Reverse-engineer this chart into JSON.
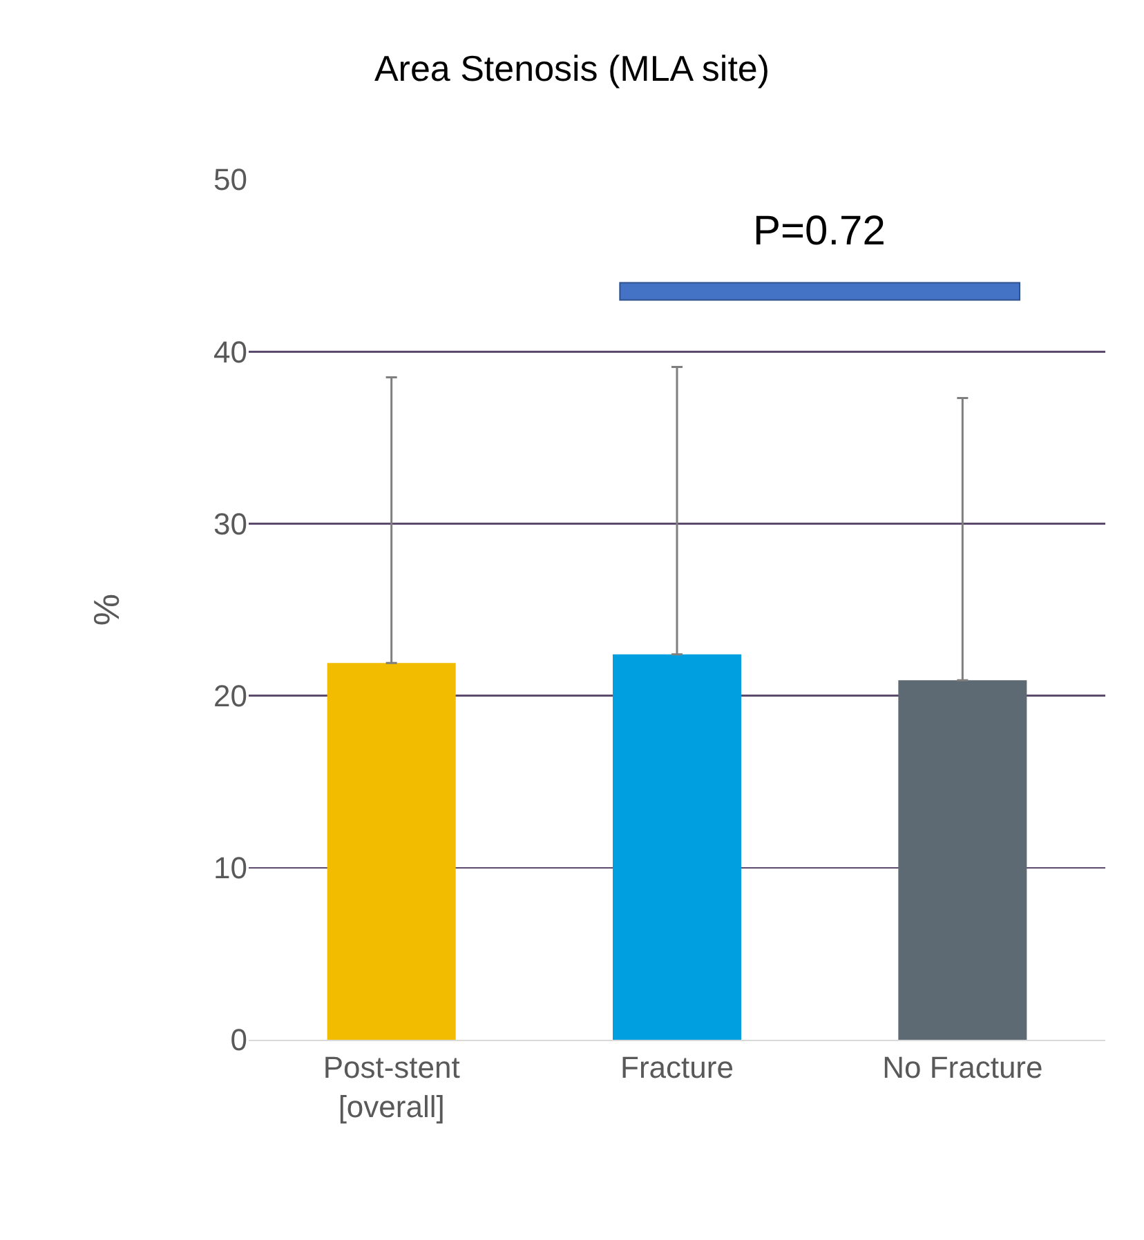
{
  "chart_data": {
    "type": "bar",
    "title": "Area Stenosis (MLA site)",
    "ylabel": "%",
    "categories": [
      "Post-stent [overall]",
      "Fracture",
      "No Fracture"
    ],
    "values": [
      21.9,
      22.4,
      20.9
    ],
    "colors": [
      "#f2bc00",
      "#00a0e0",
      "#5e6a73"
    ],
    "errors": [
      [
        21.9,
        38.5
      ],
      [
        22.4,
        39.1
      ],
      [
        20.9,
        37.3
      ]
    ],
    "ylim": [
      0,
      50
    ],
    "yticks": [
      0,
      10,
      20,
      30,
      40,
      50
    ],
    "grid": "y",
    "annotations": [
      "P=0.72"
    ]
  }
}
